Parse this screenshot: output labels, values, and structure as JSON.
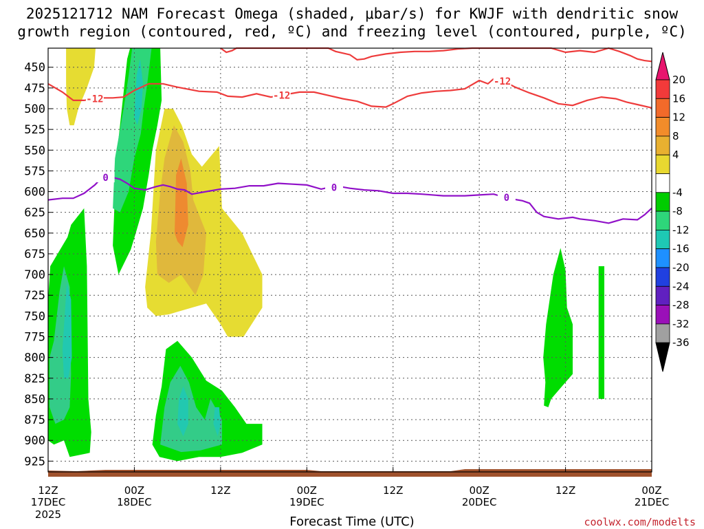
{
  "chart_data": {
    "type": "time-height contour",
    "title_line1": "2025121712 NAM Forecast Omega (shaded, μbar/s) for KWJF with dendritic snow",
    "title_line2": "growth region (contoured, red, ºC) and freezing level (contoured, purple, ºC)",
    "xlabel": "Forecast Time (UTC)",
    "credit": "coolwx.com/modelts",
    "x_ticks": [
      {
        "hour": 0,
        "label1": "12Z",
        "label2": "17DEC",
        "label3": "2025"
      },
      {
        "hour": 12,
        "label1": "00Z",
        "label2": "18DEC",
        "label3": ""
      },
      {
        "hour": 24,
        "label1": "12Z",
        "label2": "",
        "label3": ""
      },
      {
        "hour": 36,
        "label1": "00Z",
        "label2": "19DEC",
        "label3": ""
      },
      {
        "hour": 48,
        "label1": "12Z",
        "label2": "",
        "label3": ""
      },
      {
        "hour": 60,
        "label1": "00Z",
        "label2": "20DEC",
        "label3": ""
      },
      {
        "hour": 72,
        "label1": "12Z",
        "label2": "",
        "label3": ""
      },
      {
        "hour": 84,
        "label1": "00Z",
        "label2": "21DEC",
        "label3": ""
      }
    ],
    "xlim_hours": [
      0,
      84
    ],
    "y_ticks": [
      450,
      475,
      500,
      525,
      550,
      575,
      600,
      625,
      650,
      675,
      700,
      725,
      750,
      775,
      800,
      825,
      850,
      875,
      900,
      925
    ],
    "ylim_mb": [
      427,
      938
    ],
    "colorbar": {
      "labels": [
        "20",
        "16",
        "12",
        "8",
        "4",
        "-4",
        "-8",
        "-12",
        "-16",
        "-20",
        "-24",
        "-28",
        "-32",
        "-36"
      ],
      "colors": [
        "#e8156e",
        "#f23a3a",
        "#f26a2a",
        "#f28c2a",
        "#e8b030",
        "#e8d830",
        "#ffffff",
        "#00cc00",
        "#2ed67a",
        "#1ec8b4",
        "#1e90ff",
        "#2040e0",
        "#6020c0",
        "#9a10b8",
        "#a0a0a0",
        "#000000"
      ]
    },
    "omega_regions": [
      {
        "value": 4,
        "color": "#e6dc32",
        "points": [
          [
            2.5,
            427
          ],
          [
            6.6,
            427
          ],
          [
            6.4,
            450
          ],
          [
            5.4,
            475
          ],
          [
            4.2,
            500
          ],
          [
            3.6,
            520
          ],
          [
            3.0,
            520
          ],
          [
            2.6,
            500
          ],
          [
            2.5,
            470
          ]
        ]
      },
      {
        "value": 4,
        "color": "#e6dc32",
        "points": [
          [
            13.5,
            715
          ],
          [
            14.3,
            650
          ],
          [
            15.0,
            550
          ],
          [
            16.2,
            500
          ],
          [
            17.4,
            500
          ],
          [
            18.6,
            520
          ],
          [
            20.0,
            555
          ],
          [
            21.4,
            570
          ],
          [
            23.8,
            545
          ],
          [
            24.2,
            620
          ],
          [
            27.0,
            650
          ],
          [
            29.8,
            700
          ],
          [
            29.8,
            740
          ],
          [
            27.2,
            775
          ],
          [
            25.0,
            775
          ],
          [
            24.0,
            760
          ],
          [
            22.0,
            735
          ],
          [
            20.0,
            740
          ],
          [
            16.8,
            748
          ],
          [
            15.0,
            750
          ],
          [
            13.8,
            740
          ]
        ]
      },
      {
        "value": 8,
        "color": "#e0b83c",
        "points": [
          [
            15.2,
            700
          ],
          [
            15.0,
            660
          ],
          [
            15.6,
            600
          ],
          [
            16.2,
            560
          ],
          [
            17.5,
            520
          ],
          [
            18.8,
            540
          ],
          [
            19.8,
            575
          ],
          [
            20.2,
            610
          ],
          [
            22.0,
            650
          ],
          [
            21.6,
            700
          ],
          [
            20.5,
            725
          ],
          [
            18.5,
            700
          ],
          [
            16.8,
            710
          ]
        ]
      },
      {
        "value": 12,
        "color": "#ee8a30",
        "points": [
          [
            17.6,
            650
          ],
          [
            17.8,
            580
          ],
          [
            18.5,
            560
          ],
          [
            19.3,
            590
          ],
          [
            19.5,
            640
          ],
          [
            18.7,
            667
          ],
          [
            18.0,
            660
          ]
        ]
      },
      {
        "value": -4,
        "color": "#00dd00",
        "points": [
          [
            0,
            730
          ],
          [
            0.3,
            690
          ],
          [
            2.7,
            655
          ],
          [
            3.2,
            640
          ],
          [
            5.0,
            620
          ],
          [
            5.4,
            690
          ],
          [
            5.6,
            850
          ],
          [
            6.0,
            890
          ],
          [
            5.8,
            915
          ],
          [
            3.0,
            920
          ],
          [
            2.2,
            900
          ],
          [
            0.8,
            905
          ],
          [
            0,
            900
          ]
        ]
      },
      {
        "value": -8,
        "color": "#33cc88",
        "points": [
          [
            0.2,
            800
          ],
          [
            0.8,
            780
          ],
          [
            1.6,
            720
          ],
          [
            2.2,
            690
          ],
          [
            3.0,
            715
          ],
          [
            3.2,
            820
          ],
          [
            3.0,
            860
          ],
          [
            2.2,
            875
          ],
          [
            1.0,
            880
          ],
          [
            0.2,
            860
          ]
        ]
      },
      {
        "value": -12,
        "color": "#22c8b0",
        "points": [
          [
            2.0,
            790
          ],
          [
            2.6,
            710
          ],
          [
            3.2,
            730
          ],
          [
            3.3,
            800
          ],
          [
            2.8,
            825
          ],
          [
            2.2,
            825
          ]
        ]
      },
      {
        "value": -4,
        "color": "#00dd00",
        "points": [
          [
            9.0,
            665
          ],
          [
            9.5,
            560
          ],
          [
            10.5,
            480
          ],
          [
            11.0,
            440
          ],
          [
            11.4,
            427
          ],
          [
            15.6,
            427
          ],
          [
            15.8,
            490
          ],
          [
            15.2,
            520
          ],
          [
            14.5,
            550
          ],
          [
            14.0,
            580
          ],
          [
            13.2,
            620
          ],
          [
            12.2,
            650
          ],
          [
            11.5,
            670
          ],
          [
            9.8,
            700
          ]
        ]
      },
      {
        "value": -8,
        "color": "#2ed67a",
        "points": [
          [
            9.0,
            620
          ],
          [
            9.3,
            560
          ],
          [
            10.5,
            500
          ],
          [
            11.2,
            460
          ],
          [
            11.7,
            427
          ],
          [
            14.4,
            427
          ],
          [
            13.8,
            470
          ],
          [
            13.3,
            500
          ],
          [
            12.9,
            530
          ],
          [
            12.0,
            560
          ],
          [
            11.2,
            600
          ],
          [
            10.0,
            625
          ]
        ]
      },
      {
        "value": -12,
        "color": "#1ec8b4",
        "points": [
          [
            12.0,
            510
          ],
          [
            12.3,
            460
          ],
          [
            12.8,
            440
          ],
          [
            13.2,
            470
          ],
          [
            13.0,
            500
          ],
          [
            12.4,
            520
          ]
        ]
      },
      {
        "value": -4,
        "color": "#00dd00",
        "points": [
          [
            14.5,
            905
          ],
          [
            15.0,
            870
          ],
          [
            15.8,
            835
          ],
          [
            16.4,
            790
          ],
          [
            18.0,
            780
          ],
          [
            20.0,
            800
          ],
          [
            22.0,
            828
          ],
          [
            24.2,
            840
          ],
          [
            26.0,
            860
          ],
          [
            27.6,
            880
          ],
          [
            29.8,
            880
          ],
          [
            29.8,
            905
          ],
          [
            27.0,
            915
          ],
          [
            24.0,
            920
          ],
          [
            21.0,
            920
          ],
          [
            18.0,
            925
          ],
          [
            15.5,
            920
          ]
        ]
      },
      {
        "value": -8,
        "color": "#33cc88",
        "points": [
          [
            15.6,
            905
          ],
          [
            16.2,
            860
          ],
          [
            17.0,
            830
          ],
          [
            18.4,
            810
          ],
          [
            19.6,
            830
          ],
          [
            20.6,
            860
          ],
          [
            21.8,
            875
          ],
          [
            22.6,
            850
          ],
          [
            24.2,
            875
          ],
          [
            24.2,
            905
          ],
          [
            21.2,
            912
          ],
          [
            18.5,
            914
          ]
        ]
      },
      {
        "value": -12,
        "color": "#22c8b0",
        "points": [
          [
            18.0,
            880
          ],
          [
            18.2,
            850
          ],
          [
            18.8,
            835
          ],
          [
            19.5,
            850
          ],
          [
            19.5,
            880
          ],
          [
            18.8,
            895
          ]
        ]
      },
      {
        "value": -12,
        "color": "#22c8b0",
        "points": [
          [
            23.0,
            880
          ],
          [
            23.2,
            860
          ],
          [
            23.8,
            860
          ],
          [
            24.0,
            880
          ],
          [
            23.6,
            895
          ]
        ]
      },
      {
        "value": -4,
        "color": "#00dd00",
        "points": [
          [
            69.0,
            858
          ],
          [
            69.2,
            830
          ],
          [
            68.9,
            800
          ],
          [
            69.3,
            760
          ],
          [
            70.3,
            700
          ],
          [
            71.3,
            668
          ],
          [
            72.0,
            695
          ],
          [
            72.2,
            740
          ],
          [
            73.0,
            760
          ],
          [
            73.0,
            820
          ],
          [
            71.5,
            835
          ],
          [
            70.0,
            850
          ],
          [
            69.6,
            860
          ]
        ]
      },
      {
        "value": -4,
        "color": "#00dd00",
        "points": [
          [
            76.6,
            850
          ],
          [
            76.6,
            690
          ],
          [
            77.4,
            690
          ],
          [
            77.4,
            850
          ]
        ]
      }
    ],
    "dendritic_line_minus12_labels": [
      "-12",
      "-12",
      "-12"
    ],
    "freezing_line_labels": [
      "0",
      "0",
      "0"
    ],
    "dendritic_line_minus12": [
      [
        0,
        470
      ],
      [
        2,
        480
      ],
      [
        3.5,
        490
      ],
      [
        5,
        490
      ],
      [
        7,
        487
      ],
      [
        9,
        487
      ],
      [
        10.5,
        486
      ],
      [
        12,
        478
      ],
      [
        14,
        470
      ],
      [
        16,
        470
      ],
      [
        18,
        474
      ],
      [
        21,
        479
      ],
      [
        23.5,
        480
      ],
      [
        25,
        485
      ],
      [
        27,
        486
      ],
      [
        29,
        482
      ],
      [
        31,
        486
      ],
      [
        33,
        483
      ],
      [
        35,
        480
      ],
      [
        37,
        480
      ],
      [
        39,
        484
      ],
      [
        41,
        488
      ],
      [
        43,
        491
      ],
      [
        45,
        497
      ],
      [
        47,
        498
      ],
      [
        48,
        494
      ],
      [
        50,
        485
      ],
      [
        52,
        481
      ],
      [
        54,
        479
      ],
      [
        56,
        478
      ],
      [
        58,
        476
      ],
      [
        60,
        466
      ],
      [
        61.2,
        470
      ],
      [
        62,
        464
      ],
      [
        63,
        465
      ],
      [
        65,
        474
      ],
      [
        67,
        481
      ],
      [
        69,
        487
      ],
      [
        71,
        494
      ],
      [
        73,
        496
      ],
      [
        75,
        490
      ],
      [
        77,
        486
      ],
      [
        79,
        488
      ],
      [
        80.5,
        492
      ],
      [
        82,
        495
      ],
      [
        84,
        499
      ]
    ],
    "dendritic_line_upper": [
      [
        24,
        427
      ],
      [
        24.8,
        432
      ],
      [
        25.6,
        430
      ],
      [
        26.2,
        427
      ],
      [
        39,
        427
      ],
      [
        40,
        431
      ],
      [
        41,
        433
      ],
      [
        42,
        435
      ],
      [
        43,
        441
      ],
      [
        44,
        440
      ],
      [
        45,
        437
      ],
      [
        47,
        434
      ],
      [
        49,
        432
      ],
      [
        51,
        431
      ],
      [
        53,
        431
      ],
      [
        55,
        430
      ],
      [
        57,
        428
      ],
      [
        59,
        427
      ],
      [
        70,
        427
      ],
      [
        72,
        432
      ],
      [
        74,
        430
      ],
      [
        76,
        432
      ],
      [
        78,
        427
      ],
      [
        79.5,
        431
      ],
      [
        81,
        436
      ],
      [
        82,
        440
      ],
      [
        83,
        442
      ],
      [
        84,
        443
      ]
    ],
    "freezing_line": [
      [
        0,
        610
      ],
      [
        2,
        608
      ],
      [
        3.5,
        608
      ],
      [
        5,
        602
      ],
      [
        6.5,
        592
      ],
      [
        7.5,
        583
      ],
      [
        8.5,
        582
      ],
      [
        10,
        585
      ],
      [
        11,
        590
      ],
      [
        12,
        596
      ],
      [
        13.5,
        598
      ],
      [
        15,
        594
      ],
      [
        16,
        592
      ],
      [
        17,
        594
      ],
      [
        18,
        597
      ],
      [
        19,
        598
      ],
      [
        20,
        603
      ],
      [
        22,
        600
      ],
      [
        24,
        597
      ],
      [
        26,
        596
      ],
      [
        28,
        593
      ],
      [
        30,
        593
      ],
      [
        32,
        590
      ],
      [
        34,
        591
      ],
      [
        36,
        592
      ],
      [
        38,
        597
      ],
      [
        40,
        593
      ],
      [
        42,
        596
      ],
      [
        44,
        598
      ],
      [
        46,
        599
      ],
      [
        48,
        602
      ],
      [
        50,
        602
      ],
      [
        52,
        603
      ],
      [
        55,
        605
      ],
      [
        58,
        605
      ],
      [
        60,
        604
      ],
      [
        62,
        603
      ],
      [
        64,
        608
      ],
      [
        66,
        611
      ],
      [
        67,
        614
      ],
      [
        68,
        625
      ],
      [
        69,
        630
      ],
      [
        71,
        633
      ],
      [
        73,
        631
      ],
      [
        74,
        633
      ],
      [
        76,
        635
      ],
      [
        78,
        638
      ],
      [
        80,
        633
      ],
      [
        82,
        634
      ],
      [
        83,
        628
      ],
      [
        84,
        620
      ]
    ]
  }
}
